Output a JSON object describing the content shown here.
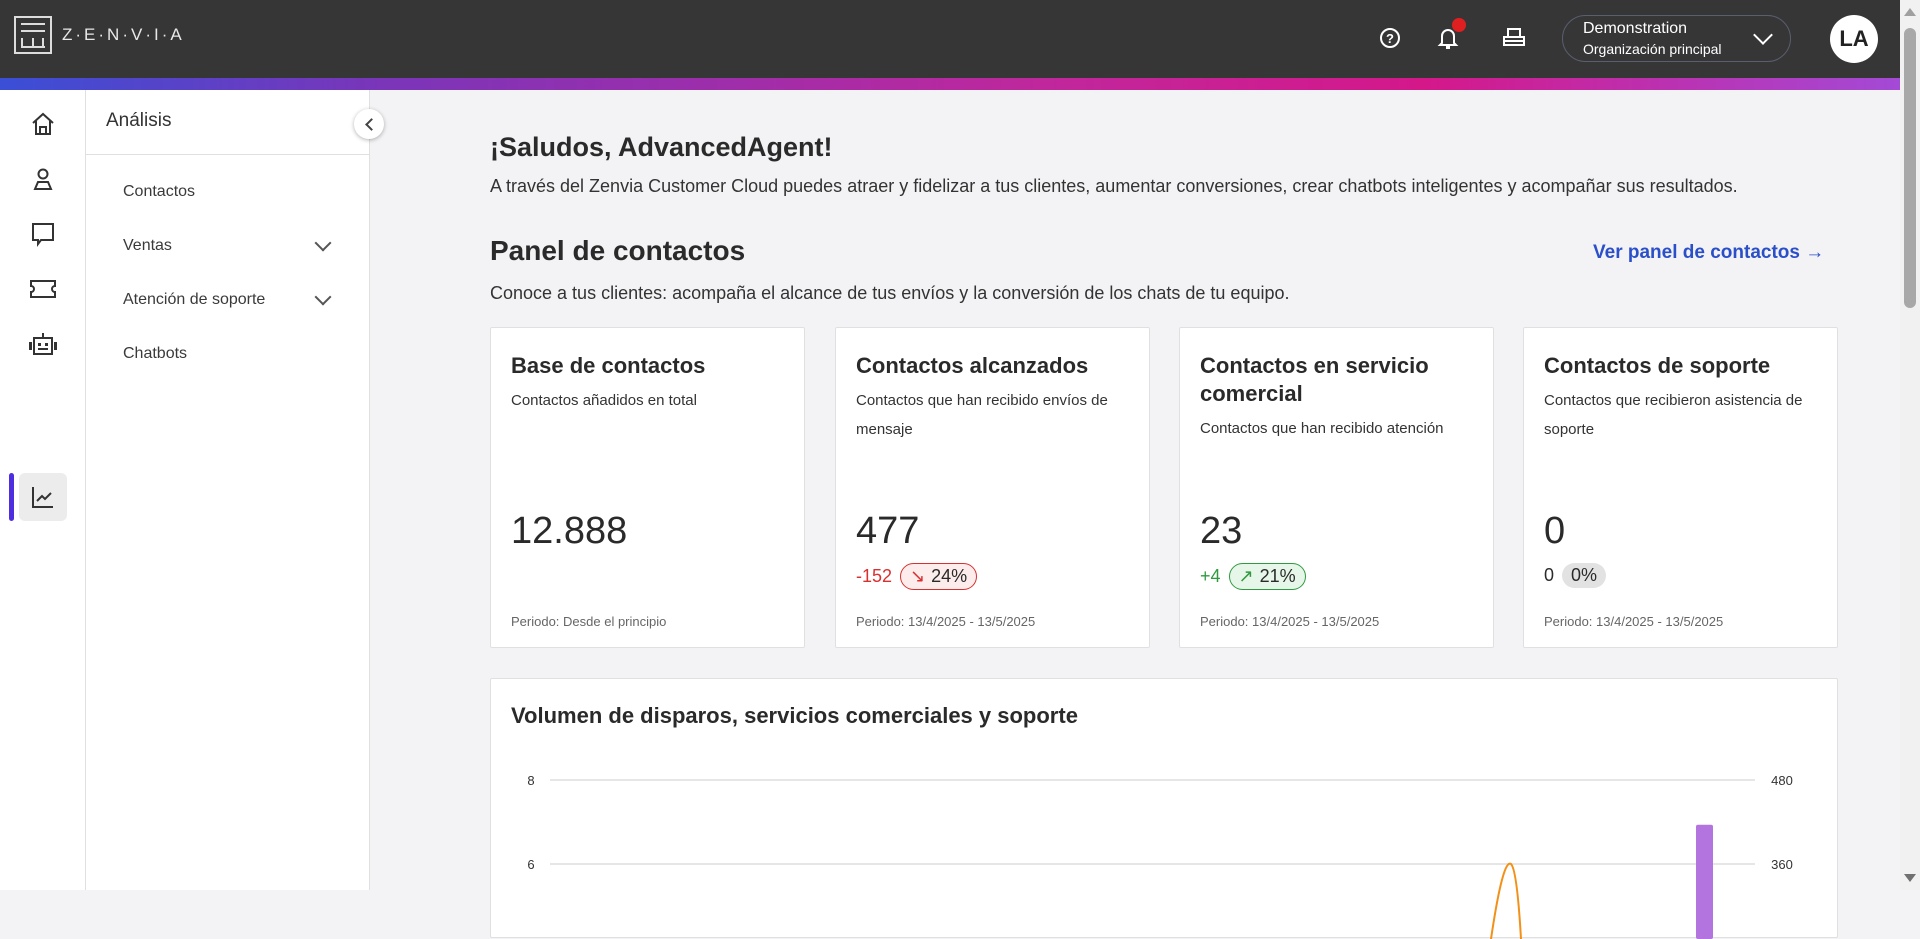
{
  "header": {
    "brand": "Z·E·N·V·I·A",
    "icons": [
      "help-icon",
      "bell-icon",
      "printer-icon"
    ],
    "org": {
      "name": "Demonstration",
      "sub": "Organización principal"
    },
    "avatar": "LA",
    "notification_color": "#e02020"
  },
  "rail": {
    "items": [
      "home-icon",
      "contact-icon",
      "chat-icon",
      "ticket-icon",
      "bot-icon",
      "analytics-icon"
    ],
    "active": "analytics-icon",
    "accent": "#4f2ee0"
  },
  "sidebar": {
    "title": "Análisis",
    "items": [
      {
        "label": "Contactos"
      },
      {
        "label": "Ventas",
        "expandable": true
      },
      {
        "label": "Atención de soporte",
        "expandable": true
      },
      {
        "label": "Chatbots"
      }
    ]
  },
  "main": {
    "greeting": "¡Saludos, AdvancedAgent!",
    "greeting_sub": "A través del Zenvia Customer Cloud puedes atraer y fidelizar a tus clientes, aumentar conversiones, crear chatbots inteligentes y acompañar sus resultados.",
    "panel_title": "Panel de contactos",
    "panel_link": "Ver panel de contactos →",
    "panel_desc": "Conoce a tus clientes: acompaña el alcance de tus envíos y la conversión de los chats de tu equipo.",
    "cards": [
      {
        "title": "Base de contactos",
        "desc": "Contactos añadidos en total",
        "value": "12.888",
        "period": "Periodo: Desde el principio"
      },
      {
        "title": "Contactos alcanzados",
        "desc": "Contactos que han recibido envíos de mensaje",
        "value": "477",
        "delta": "-152",
        "pct": "24%",
        "trend": "down",
        "period": "Periodo: 13/4/2025 - 13/5/2025"
      },
      {
        "title": "Contactos en servicio comercial",
        "desc": "Contactos que han recibido atención",
        "value": "23",
        "delta": "+4",
        "pct": "21%",
        "trend": "up",
        "period": "Periodo: 13/4/2025 - 13/5/2025"
      },
      {
        "title": "Contactos de soporte",
        "desc": "Contactos que recibieron asistencia de soporte",
        "value": "0",
        "delta": "0",
        "pct": "0%",
        "trend": "neutral",
        "period": "Periodo: 13/4/2025 - 13/5/2025"
      }
    ],
    "colors": {
      "down": "#d9302f",
      "up": "#2f9a3f",
      "link": "#2a4fc9"
    }
  },
  "chart_data": {
    "type": "bar",
    "title": "Volumen de disparos, servicios comerciales y soporte",
    "y_left_ticks": [
      "8",
      "6"
    ],
    "y_right_ticks": [
      "480",
      "360"
    ],
    "visible_bar": {
      "value": 416,
      "axis": "right",
      "color": "#b374e0"
    },
    "visible_line_peak": {
      "value": 6,
      "axis": "left",
      "color": "#f39018"
    },
    "grid": true
  }
}
